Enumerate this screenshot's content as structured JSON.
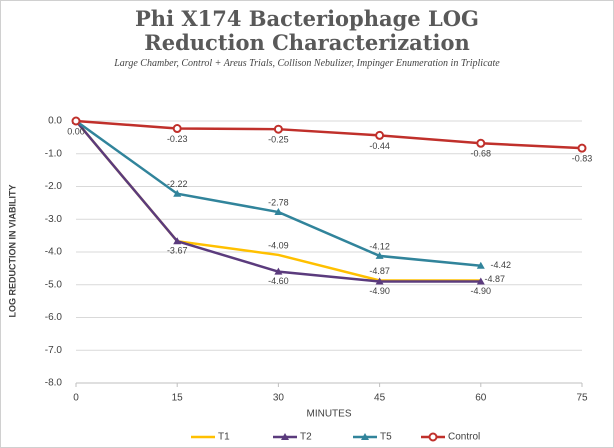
{
  "chart_data": {
    "type": "line",
    "title": "Phi X174 Bacteriophage LOG Reduction Characterization",
    "subtitle": "Large Chamber, Control + Areus Trials, Collison Nebulizer, Impinger Enumeration in Triplicate",
    "x_label": "MINUTES",
    "y_label": "LOG REDUCTION IN VIABILITY",
    "x": [
      0,
      15,
      30,
      45,
      60,
      75
    ],
    "series": [
      {
        "name": "T1",
        "color": "#ffc000",
        "marker": "none",
        "values": [
          0,
          -3.67,
          -4.09,
          -4.87,
          -4.87,
          null
        ],
        "value_labels": [
          null,
          null,
          "-4.09",
          "-4.87",
          "-4.87",
          null
        ]
      },
      {
        "name": "T2",
        "color": "#5b3b7d",
        "marker": "triangle",
        "values": [
          0,
          -3.67,
          -4.6,
          -4.9,
          -4.9,
          null
        ],
        "value_labels": [
          null,
          "-3.67",
          "-4.60",
          "-4.90",
          "-4.90",
          null
        ]
      },
      {
        "name": "T5",
        "color": "#31849b",
        "marker": "triangle",
        "values": [
          0,
          -2.22,
          -2.78,
          -4.12,
          -4.42,
          null
        ],
        "value_labels": [
          null,
          "-2.22",
          "-2.78",
          "-4.12",
          "-4.42",
          null
        ]
      },
      {
        "name": "Control",
        "color": "#c0302b",
        "marker": "circle",
        "values": [
          0,
          -0.23,
          -0.25,
          -0.44,
          -0.68,
          -0.83
        ],
        "value_labels": [
          "0.00",
          "-0.23",
          "-0.25",
          "-0.44",
          "-0.68",
          "-0.83"
        ]
      }
    ],
    "xlim": [
      0,
      75
    ],
    "xticks": [
      0,
      15,
      30,
      45,
      60,
      75
    ],
    "ylim": [
      -8,
      0
    ],
    "yticks": [
      {
        "value": 0,
        "label": "0.0"
      },
      {
        "value": -1,
        "label": "-1.0"
      },
      {
        "value": -2,
        "label": "-2.0"
      },
      {
        "value": -3,
        "label": "-3.0"
      },
      {
        "value": -4,
        "label": "-4.0"
      },
      {
        "value": -5,
        "label": "-5.0"
      },
      {
        "value": -6,
        "label": "-6.0"
      },
      {
        "value": -7,
        "label": "-7.0"
      },
      {
        "value": -8,
        "label": "-8.0"
      }
    ],
    "grid": true,
    "legend": "bottom"
  }
}
